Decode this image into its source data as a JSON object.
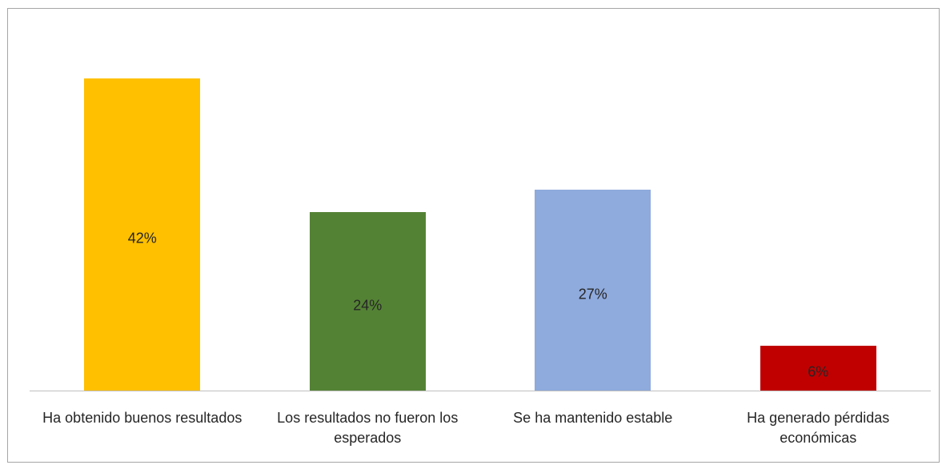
{
  "chart_data": {
    "type": "bar",
    "categories": [
      "Ha obtenido buenos resultados",
      "Los resultados no fueron los esperados",
      "Se ha mantenido estable",
      "Ha generado pérdidas económicas"
    ],
    "values": [
      42,
      24,
      27,
      6
    ],
    "value_labels": [
      "42%",
      "24%",
      "27%",
      "6%"
    ],
    "colors": [
      "#ffc000",
      "#548235",
      "#8faadc",
      "#c00000"
    ],
    "ylim": [
      0,
      45
    ],
    "grid": false
  }
}
